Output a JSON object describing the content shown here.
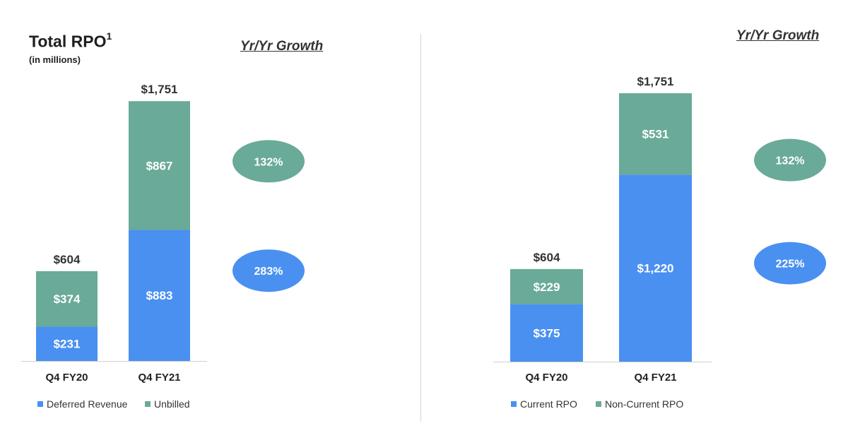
{
  "chart_data": [
    {
      "type": "bar",
      "stacked": true,
      "title": "Total RPO",
      "title_footnote": "1",
      "subtitle": "(in millions)",
      "categories": [
        "Q4 FY20",
        "Q4 FY21"
      ],
      "series": [
        {
          "name": "Deferred Revenue",
          "values": [
            231,
            883
          ],
          "labels": [
            "$231",
            "$883"
          ],
          "color": "#4A90F0"
        },
        {
          "name": "Unbilled",
          "values": [
            374,
            867
          ],
          "labels": [
            "$374",
            "$867"
          ],
          "color": "#6AAA98"
        }
      ],
      "totals": [
        604,
        1751
      ],
      "total_labels": [
        "$604",
        "$1,751"
      ],
      "growth_header": "Yr/Yr Growth",
      "growth": [
        {
          "series": "Unbilled",
          "label": "132%",
          "color": "#6AAA98"
        },
        {
          "series": "Deferred Revenue",
          "label": "283%",
          "color": "#4A90F0"
        }
      ],
      "legend": "bottom"
    },
    {
      "type": "bar",
      "stacked": true,
      "title": "",
      "categories": [
        "Q4 FY20",
        "Q4 FY21"
      ],
      "series": [
        {
          "name": "Current RPO",
          "values": [
            375,
            1220
          ],
          "labels": [
            "$375",
            "$1,220"
          ],
          "color": "#4A90F0"
        },
        {
          "name": "Non-Current RPO",
          "values": [
            229,
            531
          ],
          "labels": [
            "$229",
            "$531"
          ],
          "color": "#6AAA98"
        }
      ],
      "totals": [
        604,
        1751
      ],
      "total_labels": [
        "$604",
        "$1,751"
      ],
      "growth_header": "Yr/Yr Growth",
      "growth": [
        {
          "series": "Non-Current RPO",
          "label": "132%",
          "color": "#6AAA98"
        },
        {
          "series": "Current RPO",
          "label": "225%",
          "color": "#4A90F0"
        }
      ],
      "legend": "bottom"
    }
  ]
}
